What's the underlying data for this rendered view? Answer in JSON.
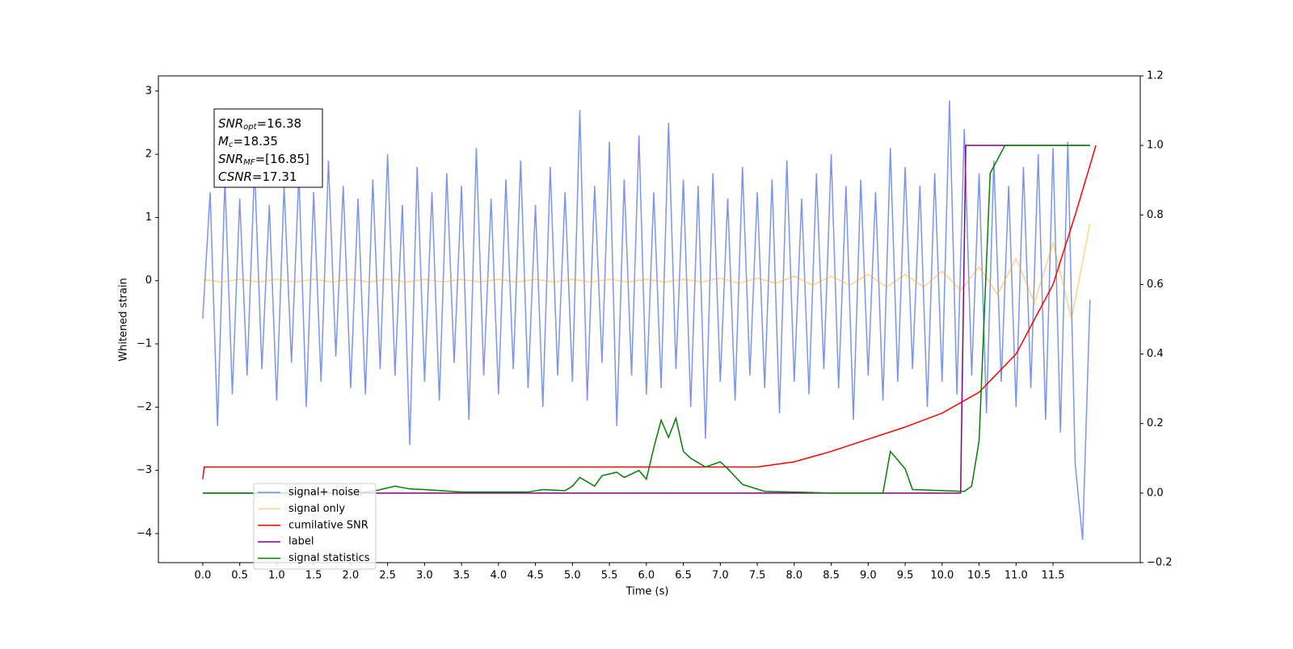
{
  "chart_data": {
    "type": "line",
    "xlabel": "Time (s)",
    "ylabel": "Whitened strain",
    "xlim": [
      -0.6,
      12.68
    ],
    "ylim": [
      -4.46,
      3.24
    ],
    "y2lim": [
      -0.2,
      1.2
    ],
    "xticks": [
      {
        "value": 0,
        "label": "0.0"
      },
      0.5,
      {
        "value": 1,
        "label": "1.0"
      },
      1.5,
      {
        "value": 2,
        "label": "2.0"
      },
      2.5,
      {
        "value": 3,
        "label": "3.0"
      },
      3.5,
      {
        "value": 4,
        "label": "4.0"
      },
      4.5,
      {
        "value": 5,
        "label": "5.0"
      },
      5.5,
      {
        "value": 6,
        "label": "6.0"
      },
      6.5,
      {
        "value": 7,
        "label": "7.0"
      },
      7.5,
      {
        "value": 8,
        "label": "8.0"
      },
      8.5,
      {
        "value": 9,
        "label": "9.0"
      },
      9.5,
      {
        "value": 10,
        "label": "10.0"
      },
      10.5,
      {
        "value": 11,
        "label": "11.0"
      },
      11.5
    ],
    "yticks": [
      {
        "value": -4,
        "label": "−4"
      },
      {
        "value": -3,
        "label": "−3"
      },
      {
        "value": -2,
        "label": "−2"
      },
      {
        "value": -1,
        "label": "−1"
      },
      0,
      1,
      2,
      3
    ],
    "y2ticks": [
      {
        "value": -0.2,
        "label": "−0.2"
      },
      {
        "value": 0,
        "label": "0.0"
      },
      0.2,
      0.4,
      0.6,
      0.8,
      {
        "value": 1,
        "label": "1.0"
      },
      1.2
    ],
    "legend": "lower left",
    "annotations": [
      {
        "name": "SNR",
        "sub": "opt",
        "value": "=16.38"
      },
      {
        "name": "M",
        "sub": "c",
        "value": "=18.35"
      },
      {
        "name": "SNR",
        "sub": "MF",
        "value": "=[16.85]"
      },
      {
        "name": "CSNR",
        "value": "=17.31"
      }
    ],
    "series": [
      {
        "name": "signal+ noise",
        "color": "#4169e1",
        "alpha": 0.7,
        "x": [
          0,
          0.1,
          0.2,
          0.3,
          0.4,
          0.5,
          0.6,
          0.7,
          0.8,
          0.9,
          1,
          1.1,
          1.2,
          1.3,
          1.4,
          1.5,
          1.6,
          1.7,
          1.8,
          1.9,
          2,
          2.1,
          2.2,
          2.3,
          2.4,
          2.5,
          2.6,
          2.7,
          2.8,
          2.9,
          3,
          3.1,
          3.2,
          3.3,
          3.4,
          3.5,
          3.6,
          3.7,
          3.8,
          3.9,
          4,
          4.1,
          4.2,
          4.3,
          4.4,
          4.5,
          4.6,
          4.7,
          4.8,
          4.9,
          5,
          5.1,
          5.2,
          5.3,
          5.4,
          5.5,
          5.6,
          5.7,
          5.8,
          5.9,
          6,
          6.1,
          6.2,
          6.3,
          6.4,
          6.5,
          6.6,
          6.7,
          6.8,
          6.9,
          7,
          7.1,
          7.2,
          7.3,
          7.4,
          7.5,
          7.6,
          7.7,
          7.8,
          7.9,
          8,
          8.1,
          8.2,
          8.3,
          8.4,
          8.5,
          8.6,
          8.7,
          8.8,
          8.9,
          9,
          9.1,
          9.2,
          9.3,
          9.4,
          9.5,
          9.6,
          9.7,
          9.8,
          9.9,
          10,
          10.1,
          10.2,
          10.3,
          10.4,
          10.5,
          10.6,
          10.7,
          10.8,
          10.9,
          11,
          11.1,
          11.2,
          11.3,
          11.4,
          11.5,
          11.6,
          11.7,
          11.8,
          11.9,
          12
        ],
        "values": [
          -0.6,
          1.4,
          -2.3,
          1.6,
          -1.8,
          1.3,
          -1.5,
          1.8,
          -1.4,
          1.2,
          -1.9,
          1.5,
          -1.3,
          1.7,
          -2.0,
          1.4,
          -1.6,
          1.9,
          -1.2,
          1.5,
          -1.7,
          1.3,
          -1.8,
          1.6,
          -1.4,
          2.0,
          -1.5,
          1.2,
          -2.6,
          1.8,
          -1.6,
          1.4,
          -1.9,
          1.7,
          -1.3,
          1.5,
          -2.2,
          2.1,
          -1.5,
          1.3,
          -1.8,
          1.6,
          -1.4,
          1.9,
          -1.7,
          1.2,
          -2.0,
          1.8,
          -1.5,
          1.4,
          -1.6,
          2.7,
          -1.9,
          1.5,
          -1.3,
          2.2,
          -2.3,
          1.6,
          -1.5,
          2.3,
          -1.8,
          1.4,
          -1.7,
          2.5,
          -1.4,
          1.6,
          -2.0,
          1.5,
          -2.5,
          1.7,
          -1.6,
          1.3,
          -1.9,
          1.8,
          -1.5,
          1.4,
          -1.7,
          1.6,
          -2.1,
          1.9,
          -1.6,
          1.3,
          -1.8,
          1.7,
          -1.4,
          2.0,
          -1.7,
          1.5,
          -2.2,
          1.6,
          -1.5,
          1.4,
          -1.9,
          2.1,
          -1.6,
          1.8,
          -1.4,
          1.5,
          -2.0,
          1.7,
          -1.6,
          2.85,
          -1.8,
          2.4,
          -1.5,
          1.7,
          -2.1,
          1.9,
          -1.6,
          1.5,
          -2.0,
          1.8,
          -1.7,
          2.0,
          -2.2,
          2.1,
          -2.4,
          2.2,
          -2.9,
          -4.1,
          -0.3
        ]
      },
      {
        "name": "signal only",
        "color": "#ffa500",
        "alpha": 0.5,
        "x": [
          0,
          0.25,
          0.5,
          0.75,
          1,
          1.25,
          1.5,
          1.75,
          2,
          2.25,
          2.5,
          2.75,
          3,
          3.25,
          3.5,
          3.75,
          4,
          4.25,
          4.5,
          4.75,
          5,
          5.25,
          5.5,
          5.75,
          6,
          6.25,
          6.5,
          6.75,
          7,
          7.25,
          7.5,
          7.75,
          8,
          8.25,
          8.5,
          8.75,
          9,
          9.25,
          9.5,
          9.75,
          10,
          10.25,
          10.5,
          10.75,
          11,
          11.25,
          11.5,
          11.75,
          12
        ],
        "values": [
          0.02,
          -0.02,
          0.02,
          -0.02,
          0.02,
          -0.02,
          0.02,
          -0.02,
          0.02,
          -0.02,
          0.02,
          -0.02,
          0.02,
          -0.02,
          0.02,
          -0.02,
          0.02,
          -0.02,
          0.02,
          -0.02,
          0.02,
          -0.02,
          0.02,
          -0.02,
          0.02,
          -0.02,
          0.02,
          -0.02,
          0.04,
          -0.04,
          0.04,
          -0.04,
          0.07,
          -0.07,
          0.07,
          -0.07,
          0.1,
          -0.1,
          0.1,
          -0.1,
          0.15,
          -0.15,
          0.22,
          -0.22,
          0.35,
          -0.35,
          0.6,
          -0.6,
          0.9
        ]
      },
      {
        "name": "cumilative SNR",
        "color": "#ff0000",
        "axis": "y2",
        "x": [
          0,
          0.02,
          1,
          7.5,
          8,
          8.5,
          9,
          9.5,
          10,
          10.5,
          11,
          11.5,
          11.8,
          12.08
        ],
        "values": [
          0.04,
          0.075,
          0.075,
          0.075,
          0.09,
          0.12,
          0.155,
          0.19,
          0.23,
          0.29,
          0.4,
          0.6,
          0.8,
          1.0
        ]
      },
      {
        "name": "label",
        "color": "#800080",
        "axis": "y2",
        "x": [
          0,
          10.25,
          10.32,
          12
        ],
        "values": [
          0,
          0,
          1,
          1
        ]
      },
      {
        "name": "signal statistics",
        "color": "#008000",
        "axis": "y2",
        "x": [
          0,
          2.0,
          2.3,
          2.6,
          2.8,
          3.0,
          3.5,
          4.4,
          4.6,
          4.9,
          5.0,
          5.1,
          5.3,
          5.4,
          5.6,
          5.7,
          5.9,
          6.0,
          6.1,
          6.2,
          6.3,
          6.4,
          6.5,
          6.6,
          6.8,
          7.0,
          7.1,
          7.3,
          7.6,
          8.5,
          9.2,
          9.3,
          9.5,
          9.6,
          10.3,
          10.4,
          10.5,
          10.65,
          10.85,
          12.0
        ],
        "values": [
          0,
          0,
          0.005,
          0.02,
          0.012,
          0.01,
          0.003,
          0.003,
          0.01,
          0.007,
          0.02,
          0.045,
          0.02,
          0.05,
          0.06,
          0.045,
          0.065,
          0.04,
          0.13,
          0.21,
          0.16,
          0.215,
          0.12,
          0.1,
          0.075,
          0.09,
          0.07,
          0.025,
          0.005,
          0,
          0,
          0.12,
          0.07,
          0.01,
          0.005,
          0.02,
          0.15,
          0.92,
          1.0,
          1.0
        ]
      }
    ]
  }
}
